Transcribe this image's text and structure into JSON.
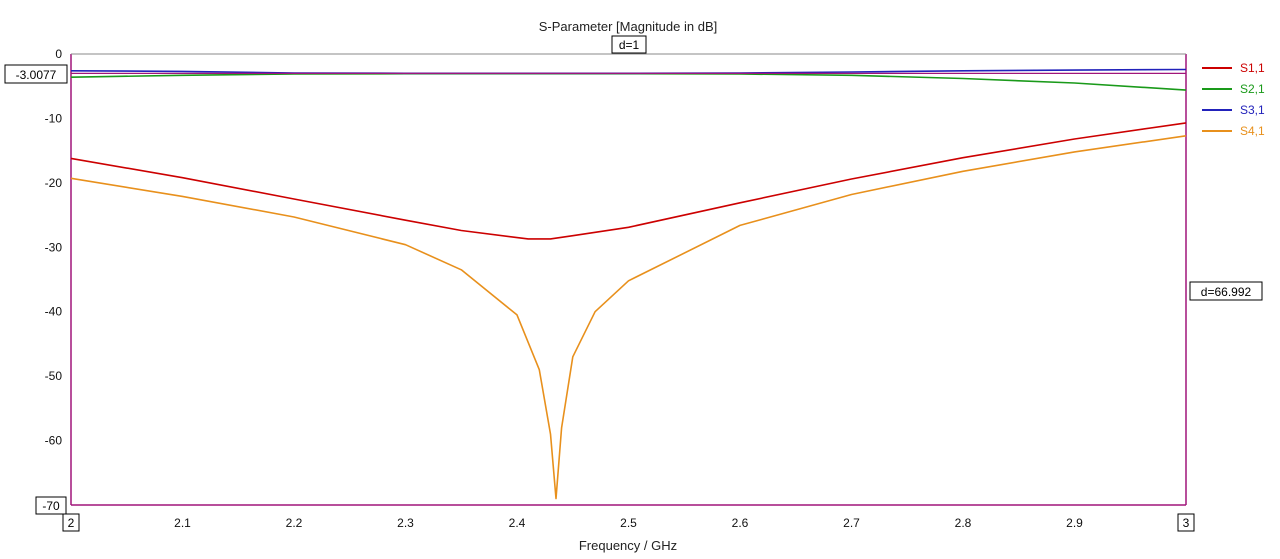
{
  "chart_data": {
    "type": "line",
    "title": "S-Parameter [Magnitude in dB]",
    "xlabel": "Frequency / GHz",
    "ylabel": "",
    "xlim": [
      2,
      3
    ],
    "ylim": [
      -70,
      0
    ],
    "grid": true,
    "legend_position": "right",
    "x_ticks": [
      "2",
      "2.1",
      "2.2",
      "2.3",
      "2.4",
      "2.5",
      "2.6",
      "2.7",
      "2.8",
      "2.9",
      "3"
    ],
    "y_ticks": [
      "0",
      "-10",
      "-20",
      "-30",
      "-40",
      "-50",
      "-60",
      "-70"
    ],
    "markers": {
      "top": "d=1",
      "right": "d=66.992",
      "left": "-3.0077",
      "bottom_left": "-70",
      "x_start": "2",
      "x_end": "3"
    },
    "series": [
      {
        "name": "S1,1",
        "color": "#cc0000",
        "x": [
          2.0,
          2.1,
          2.2,
          2.3,
          2.35,
          2.4,
          2.41,
          2.43,
          2.45,
          2.5,
          2.6,
          2.7,
          2.8,
          2.9,
          3.0
        ],
        "y": [
          -16.2,
          -19.2,
          -22.5,
          -25.8,
          -27.4,
          -28.5,
          -28.7,
          -28.7,
          -28.2,
          -26.9,
          -23.1,
          -19.4,
          -16.1,
          -13.2,
          -10.7
        ]
      },
      {
        "name": "S2,1",
        "color": "#1a9a1a",
        "x": [
          2.0,
          2.1,
          2.2,
          2.3,
          2.4,
          2.5,
          2.6,
          2.7,
          2.8,
          2.9,
          3.0
        ],
        "y": [
          -3.6,
          -3.3,
          -3.1,
          -3.05,
          -3.05,
          -3.05,
          -3.1,
          -3.3,
          -3.8,
          -4.5,
          -5.6
        ]
      },
      {
        "name": "S3,1",
        "color": "#2222bb",
        "x": [
          2.0,
          2.1,
          2.2,
          2.3,
          2.4,
          2.5,
          2.6,
          2.7,
          2.8,
          2.9,
          3.0
        ],
        "y": [
          -2.6,
          -2.7,
          -2.95,
          -3.0,
          -3.0,
          -3.0,
          -2.95,
          -2.8,
          -2.6,
          -2.5,
          -2.4
        ]
      },
      {
        "name": "S4,1",
        "color": "#e8901c",
        "x": [
          2.0,
          2.1,
          2.2,
          2.3,
          2.35,
          2.4,
          2.42,
          2.43,
          2.435,
          2.44,
          2.45,
          2.47,
          2.5,
          2.6,
          2.7,
          2.8,
          2.9,
          3.0
        ],
        "y": [
          -19.3,
          -22.1,
          -25.3,
          -29.6,
          -33.5,
          -40.5,
          -49.0,
          -59.0,
          -69.0,
          -58.0,
          -47.0,
          -40.0,
          -35.2,
          -26.6,
          -21.8,
          -18.2,
          -15.2,
          -12.7
        ]
      }
    ]
  }
}
